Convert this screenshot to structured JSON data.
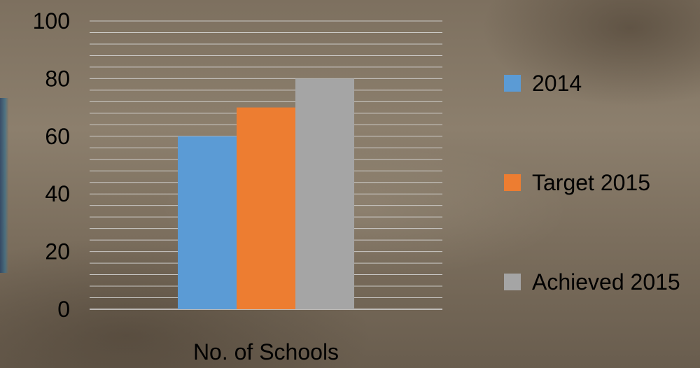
{
  "chart_data": {
    "type": "bar",
    "title": "",
    "xlabel": "",
    "ylabel": "",
    "categories": [
      "No. of Schools"
    ],
    "series": [
      {
        "name": "2014",
        "values": [
          60
        ],
        "color": "#5b9bd5"
      },
      {
        "name": "Target 2015",
        "values": [
          70
        ],
        "color": "#ed7d31"
      },
      {
        "name": "Achieved 2015",
        "values": [
          80
        ],
        "color": "#a5a5a5"
      }
    ],
    "ylim": [
      0,
      100
    ],
    "yticks": [
      "0",
      "20",
      "40",
      "60",
      "80",
      "100"
    ],
    "grid": "horizontal",
    "legend_position": "right"
  }
}
